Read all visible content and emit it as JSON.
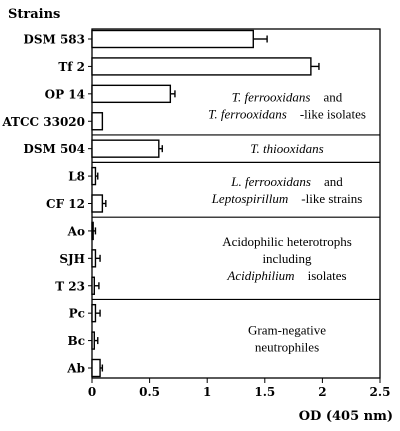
{
  "chart_data": {
    "type": "bar",
    "orientation": "horizontal",
    "categories_title": "Strains",
    "xlabel": "OD (405 nm)",
    "xlim": [
      0,
      2.5
    ],
    "xticks": [
      "0",
      "0.5",
      "1",
      "1.5",
      "2",
      "2.5"
    ],
    "grid": false,
    "error_bars": true,
    "bar_fill": "#ffffff",
    "bar_stroke": "#000000",
    "groups": [
      {
        "lines": [
          [
            {
              "text": "T. ferrooxidans",
              "italic": true
            },
            {
              "text": "and",
              "italic": false
            }
          ],
          [
            {
              "text": "T. ferrooxidans",
              "italic": true
            },
            {
              "text": "-like isolates",
              "italic": false
            }
          ]
        ],
        "categories": [
          {
            "label": "DSM 583",
            "value": 1.4,
            "error": 0.12
          },
          {
            "label": "Tf 2",
            "value": 1.9,
            "error": 0.07
          },
          {
            "label": "OP 14",
            "value": 0.68,
            "error": 0.04
          },
          {
            "label": "ATCC 33020",
            "value": 0.09,
            "error": 0.0
          }
        ]
      },
      {
        "lines": [
          [
            {
              "text": "T. thiooxidans",
              "italic": true
            }
          ]
        ],
        "categories": [
          {
            "label": "DSM 504",
            "value": 0.58,
            "error": 0.03
          }
        ]
      },
      {
        "lines": [
          [
            {
              "text": "L. ferrooxidans",
              "italic": true
            },
            {
              "text": "and",
              "italic": false
            }
          ],
          [
            {
              "text": "Leptospirillum",
              "italic": true
            },
            {
              "text": "-like strains",
              "italic": false
            }
          ]
        ],
        "categories": [
          {
            "label": "L8",
            "value": 0.03,
            "error": 0.02
          },
          {
            "label": "CF 12",
            "value": 0.09,
            "error": 0.03
          }
        ]
      },
      {
        "lines": [
          [
            {
              "text": "Acidophilic heterotrophs",
              "italic": false
            }
          ],
          [
            {
              "text": "including",
              "italic": false
            }
          ],
          [
            {
              "text": "Acidiphilium",
              "italic": true
            },
            {
              "text": "isolates",
              "italic": false
            }
          ]
        ],
        "categories": [
          {
            "label": "Ao",
            "value": 0.01,
            "error": 0.02
          },
          {
            "label": "SJH",
            "value": 0.03,
            "error": 0.04
          },
          {
            "label": "T 23",
            "value": 0.02,
            "error": 0.04
          }
        ]
      },
      {
        "lines": [
          [
            {
              "text": "Gram-negative",
              "italic": false
            }
          ],
          [
            {
              "text": "neutrophiles",
              "italic": false
            }
          ]
        ],
        "categories": [
          {
            "label": "Pc",
            "value": 0.03,
            "error": 0.04
          },
          {
            "label": "Bc",
            "value": 0.02,
            "error": 0.03
          },
          {
            "label": "Ab",
            "value": 0.07,
            "error": 0.02
          }
        ]
      }
    ]
  }
}
